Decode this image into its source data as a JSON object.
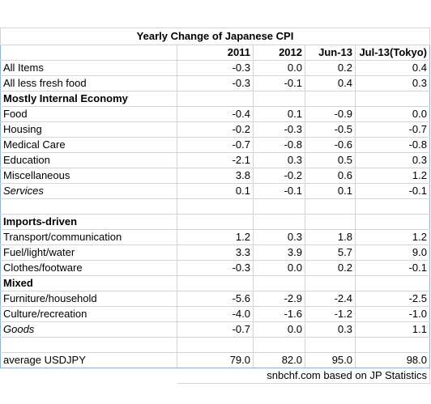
{
  "title": "Yearly Change of Japanese CPI",
  "columns": [
    "2011",
    "2012",
    "Jun-13",
    "Jul-13(Tokyo)"
  ],
  "rows": [
    {
      "label": "All Items",
      "values": [
        "-0.3",
        "0.0",
        "0.2",
        "0.4"
      ]
    },
    {
      "label": "All less fresh food",
      "values": [
        "-0.3",
        "-0.1",
        "0.4",
        "0.3"
      ]
    },
    {
      "label": "Mostly Internal Economy",
      "values": [
        "",
        "",
        "",
        ""
      ]
    },
    {
      "label": "Food",
      "values": [
        "-0.4",
        "0.1",
        "-0.9",
        "0.0"
      ]
    },
    {
      "label": "Housing",
      "values": [
        "-0.2",
        "-0.3",
        "-0.5",
        "-0.7"
      ]
    },
    {
      "label": "Medical Care",
      "values": [
        "-0.7",
        "-0.8",
        "-0.6",
        "-0.8"
      ]
    },
    {
      "label": "Education",
      "values": [
        "-2.1",
        "0.3",
        "0.5",
        "0.3"
      ]
    },
    {
      "label": "Miscellaneous",
      "values": [
        "3.8",
        "-0.2",
        "0.6",
        "1.2"
      ]
    },
    {
      "label": "Services",
      "values": [
        "0.1",
        "-0.1",
        "0.1",
        "-0.1"
      ]
    },
    {
      "label": "",
      "values": [
        "",
        "",
        "",
        ""
      ]
    },
    {
      "label": "Imports-driven",
      "values": [
        "",
        "",
        "",
        ""
      ]
    },
    {
      "label": "Transport/communication",
      "values": [
        "1.2",
        "0.3",
        "1.8",
        "1.2"
      ]
    },
    {
      "label": "Fuel/light/water",
      "values": [
        "3.3",
        "3.9",
        "5.7",
        "9.0"
      ]
    },
    {
      "label": "Clothes/footware",
      "values": [
        "-0.3",
        "0.0",
        "0.2",
        "-0.1"
      ]
    },
    {
      "label": "Mixed",
      "values": [
        "",
        "",
        "",
        ""
      ]
    },
    {
      "label": "Furniture/household",
      "values": [
        "-5.6",
        "-2.9",
        "-2.4",
        "-2.5"
      ]
    },
    {
      "label": "Culture/recreation",
      "values": [
        "-4.0",
        "-1.6",
        "-1.2",
        "-1.0"
      ]
    },
    {
      "label": "Goods",
      "values": [
        "-0.7",
        "0.0",
        "0.3",
        "1.1"
      ]
    },
    {
      "label": "",
      "values": [
        "",
        "",
        "",
        ""
      ]
    },
    {
      "label": "average USDJPY",
      "values": [
        "79.0",
        "82.0",
        "95.0",
        "98.0"
      ]
    }
  ],
  "source": "snbchf.com based on JP Statistics"
}
